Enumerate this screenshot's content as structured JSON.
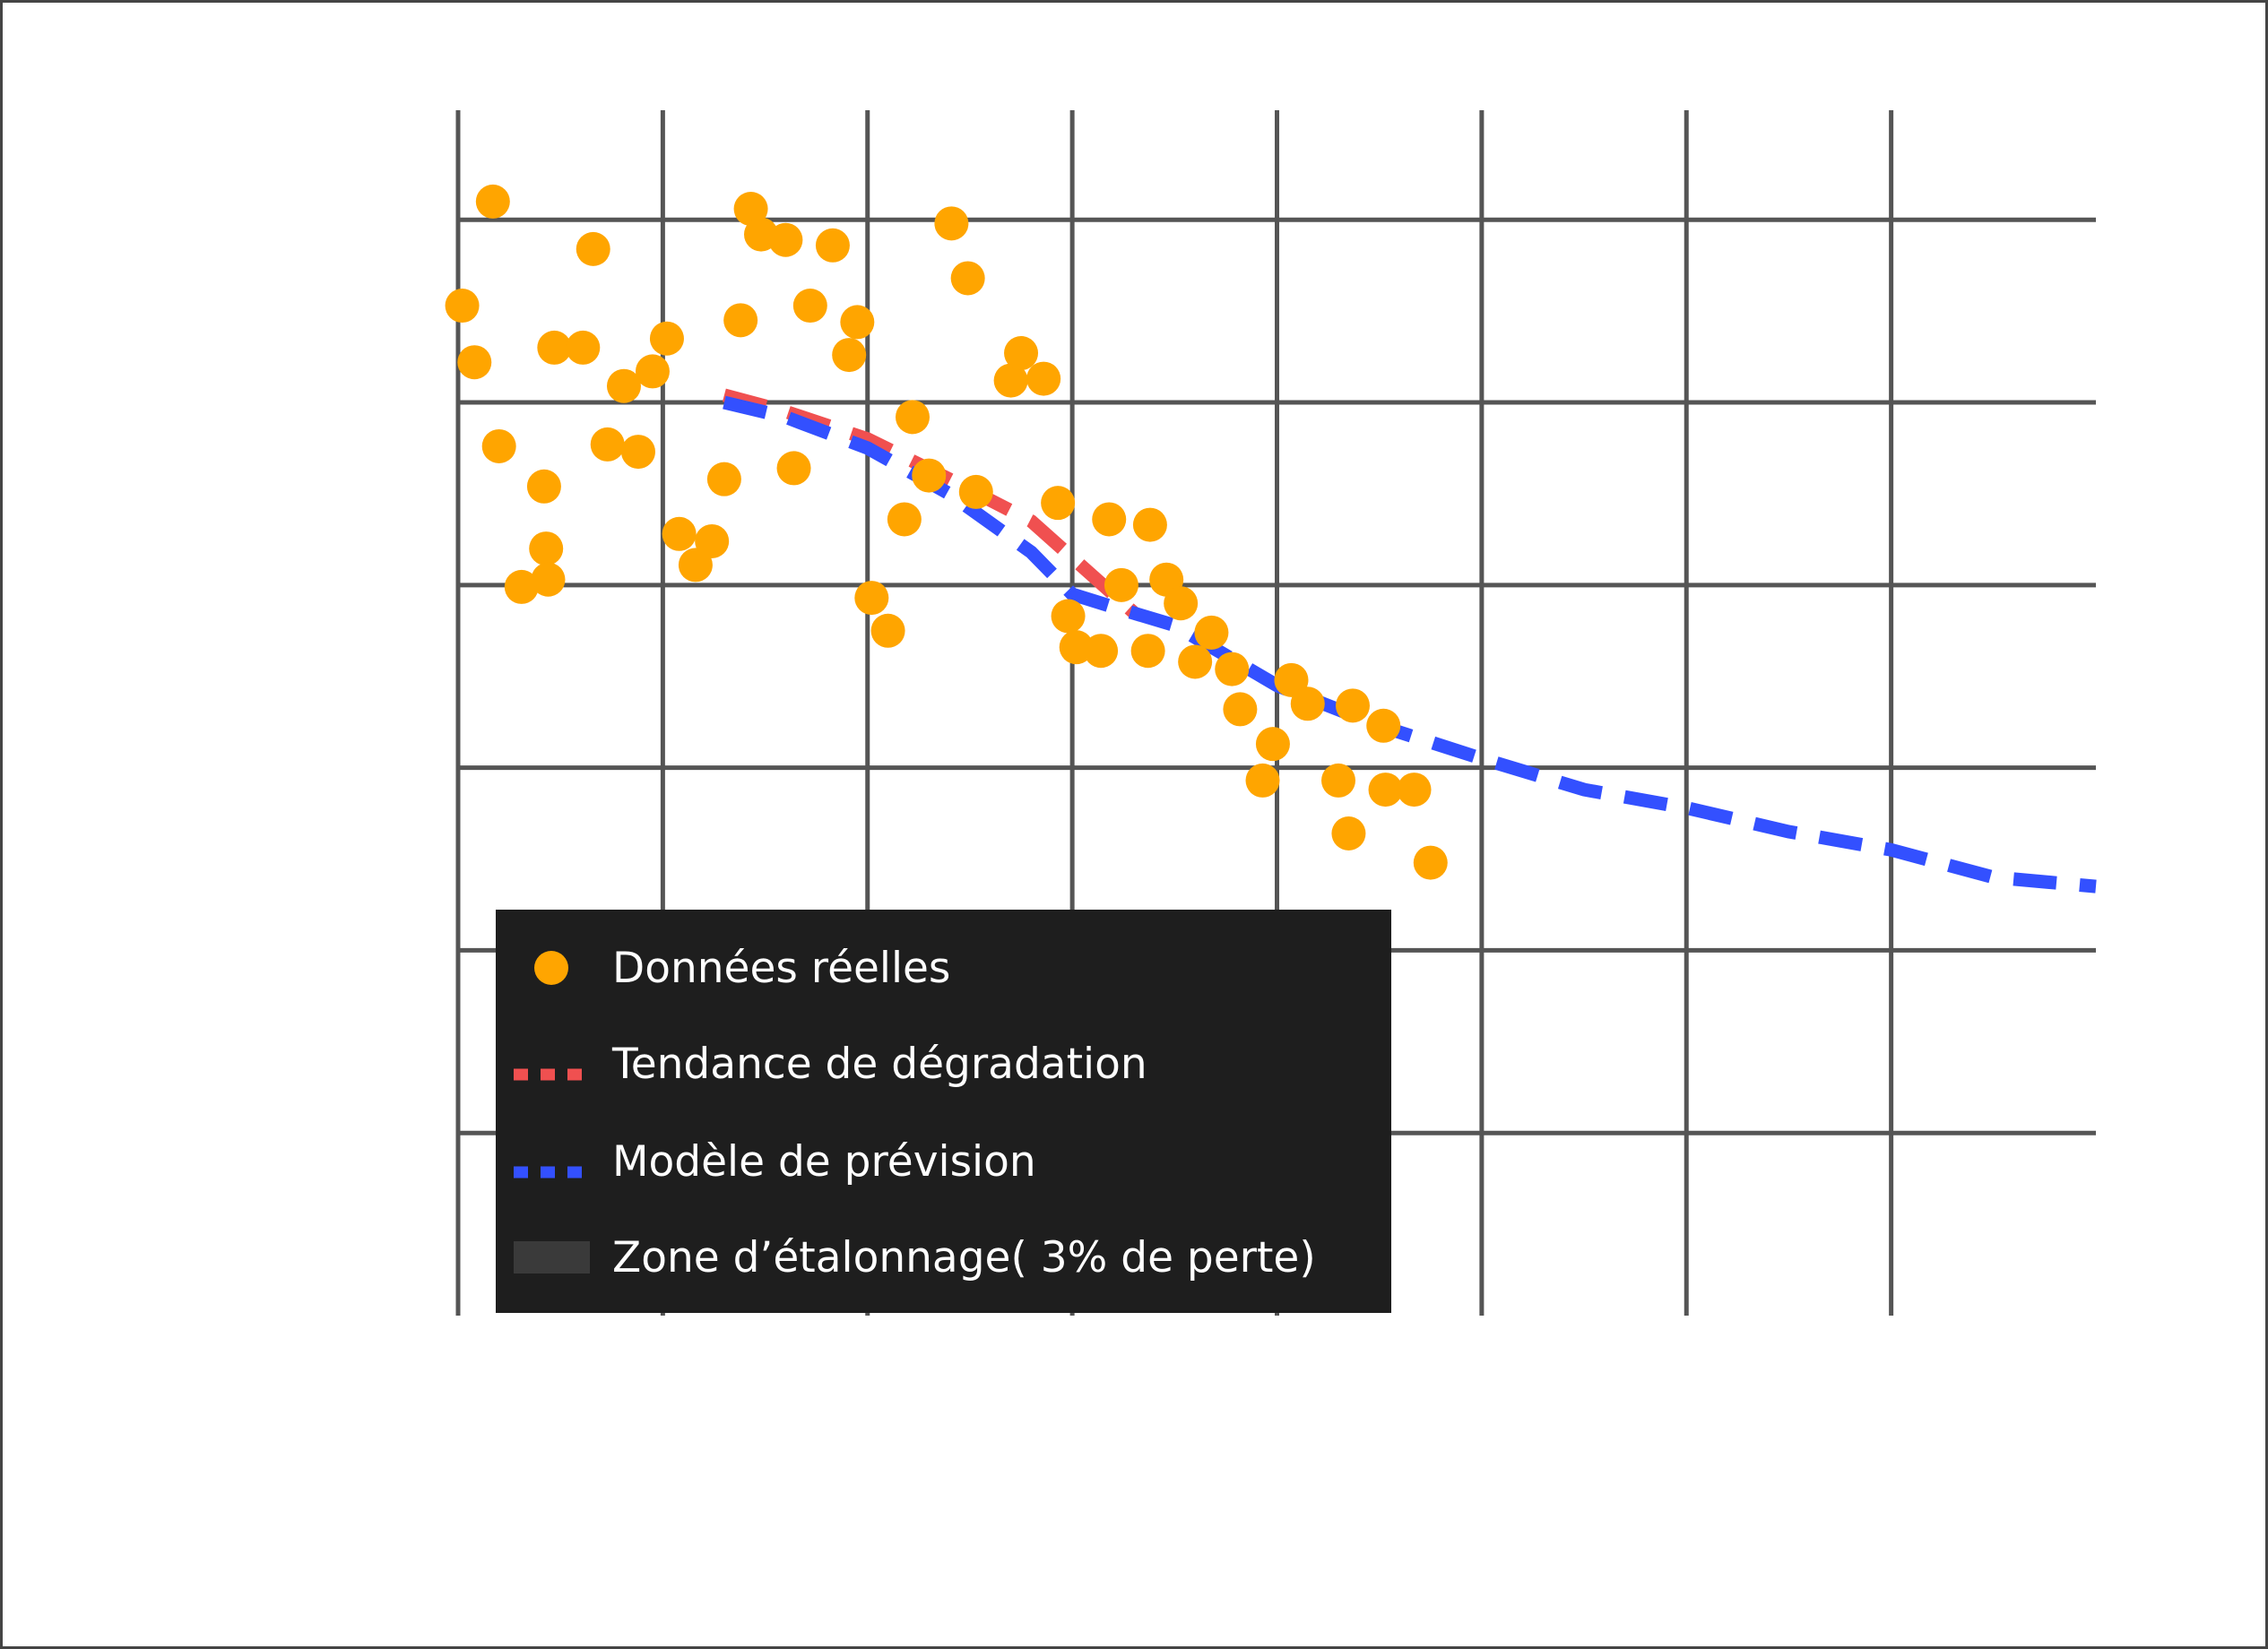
{
  "chart_data": {
    "type": "scatter",
    "title": "",
    "xlabel": "",
    "ylabel": "",
    "xlim": [
      0,
      8
    ],
    "ylim": [
      94,
      100.6
    ],
    "x_ticks": [
      0,
      1,
      2,
      3,
      4,
      5,
      6,
      7
    ],
    "y_ticks": [
      95,
      96,
      97,
      98,
      99,
      100
    ],
    "grid": true,
    "legend_position": "lower-left",
    "colors": {
      "real": "#ffa500",
      "trend": "#f05050",
      "forecast": "#3350ff",
      "zone": "#3a3a3a",
      "grid": "#555555",
      "legend_bg": "#1e1e1e"
    },
    "series": [
      {
        "name": "Données réelles",
        "kind": "scatter",
        "points": [
          [
            0.02,
            99.53
          ],
          [
            0.08,
            99.22
          ],
          [
            0.17,
            100.1
          ],
          [
            0.2,
            98.76
          ],
          [
            0.31,
            97.99
          ],
          [
            0.42,
            98.54
          ],
          [
            0.43,
            98.2
          ],
          [
            0.44,
            98.03
          ],
          [
            0.47,
            99.3
          ],
          [
            0.61,
            99.3
          ],
          [
            0.66,
            99.84
          ],
          [
            0.73,
            98.77
          ],
          [
            0.81,
            99.09
          ],
          [
            0.88,
            98.73
          ],
          [
            0.95,
            99.17
          ],
          [
            1.02,
            99.35
          ],
          [
            1.08,
            98.28
          ],
          [
            1.16,
            98.11
          ],
          [
            1.24,
            98.24
          ],
          [
            1.3,
            98.58
          ],
          [
            1.38,
            99.45
          ],
          [
            1.43,
            100.06
          ],
          [
            1.48,
            99.92
          ],
          [
            1.6,
            99.89
          ],
          [
            1.64,
            98.64
          ],
          [
            1.72,
            99.53
          ],
          [
            1.83,
            99.86
          ],
          [
            1.91,
            99.26
          ],
          [
            1.95,
            99.44
          ],
          [
            2.02,
            97.93
          ],
          [
            2.1,
            97.75
          ],
          [
            2.18,
            98.36
          ],
          [
            2.22,
            98.92
          ],
          [
            2.3,
            98.6
          ],
          [
            2.41,
            99.98
          ],
          [
            2.49,
            99.68
          ],
          [
            2.53,
            98.51
          ],
          [
            2.7,
            99.12
          ],
          [
            2.75,
            99.27
          ],
          [
            2.86,
            99.13
          ],
          [
            2.93,
            98.45
          ],
          [
            2.98,
            97.83
          ],
          [
            3.02,
            97.66
          ],
          [
            3.14,
            97.64
          ],
          [
            3.18,
            98.36
          ],
          [
            3.24,
            98.0
          ],
          [
            3.37,
            97.64
          ],
          [
            3.38,
            98.33
          ],
          [
            3.46,
            98.03
          ],
          [
            3.53,
            97.9
          ],
          [
            3.6,
            97.58
          ],
          [
            3.68,
            97.74
          ],
          [
            3.78,
            97.54
          ],
          [
            3.82,
            97.32
          ],
          [
            3.93,
            96.93
          ],
          [
            3.98,
            97.13
          ],
          [
            4.07,
            97.48
          ],
          [
            4.15,
            97.35
          ],
          [
            4.3,
            96.93
          ],
          [
            4.35,
            96.64
          ],
          [
            4.37,
            97.34
          ],
          [
            4.52,
            97.23
          ],
          [
            4.53,
            96.88
          ],
          [
            4.67,
            96.88
          ],
          [
            4.75,
            96.48
          ]
        ]
      },
      {
        "name": "Tendance de dégradation",
        "kind": "line",
        "points": [
          [
            1.3,
            99.04
          ],
          [
            1.6,
            98.95
          ],
          [
            2.0,
            98.8
          ],
          [
            2.4,
            98.58
          ],
          [
            2.8,
            98.35
          ],
          [
            3.1,
            98.05
          ],
          [
            3.3,
            97.85
          ]
        ]
      },
      {
        "name": "Modèle de prévision",
        "kind": "line",
        "points": [
          [
            1.3,
            99.0
          ],
          [
            1.6,
            98.92
          ],
          [
            2.0,
            98.75
          ],
          [
            2.4,
            98.5
          ],
          [
            2.8,
            98.18
          ],
          [
            3.0,
            97.95
          ],
          [
            3.2,
            97.88
          ],
          [
            3.5,
            97.78
          ],
          [
            4.0,
            97.45
          ],
          [
            4.5,
            97.23
          ],
          [
            5.0,
            97.05
          ],
          [
            5.5,
            96.88
          ],
          [
            6.0,
            96.78
          ],
          [
            6.5,
            96.65
          ],
          [
            7.0,
            96.55
          ],
          [
            7.5,
            96.4
          ],
          [
            8.0,
            96.35
          ]
        ]
      },
      {
        "name": "Zone d’étalonnage( 3% de perte)",
        "kind": "zone"
      }
    ]
  }
}
